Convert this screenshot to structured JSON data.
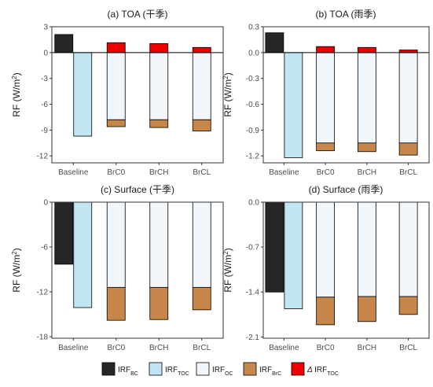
{
  "legend": [
    {
      "id": "bc",
      "base": "IRF",
      "sub": "BC",
      "prefix": "",
      "color": "#262626"
    },
    {
      "id": "toc",
      "base": "IRF",
      "sub": "TOC",
      "prefix": "",
      "color": "#bfe6f2"
    },
    {
      "id": "oc",
      "base": "IRF",
      "sub": "OC",
      "prefix": "",
      "color": "#f1f6fb"
    },
    {
      "id": "brc",
      "base": "IRF",
      "sub": "BrC",
      "prefix": "",
      "color": "#c8874a"
    },
    {
      "id": "dtoc",
      "base": "IRF",
      "sub": "TOC",
      "prefix": "Δ ",
      "color": "#ee0000"
    }
  ],
  "chart_data": [
    {
      "type": "bar",
      "title": "(a) TOA (干季)",
      "ylabel_main": "RF (W/m",
      "ylabel_sup": "2",
      "ylabel_end": ")",
      "categories": [
        "Baseline",
        "BrC0",
        "BrCH",
        "BrCL"
      ],
      "ylim": [
        -12.8,
        3
      ],
      "yticks": [
        3,
        0,
        -3,
        -6,
        -9,
        -12
      ],
      "ytick_labels": [
        "3",
        "0",
        "-3",
        "-6",
        "-9",
        "-12"
      ],
      "zero_line": true,
      "baseline_bars": [
        {
          "series": "bc",
          "from": 0,
          "to": 2.1
        },
        {
          "series": "toc",
          "from": 0,
          "to": -9.7
        }
      ],
      "stacks": [
        {
          "category": "BrC0",
          "segments": [
            {
              "series": "oc",
              "from": 0,
              "to": -7.8
            },
            {
              "series": "brc",
              "from": -7.8,
              "to": -8.6
            },
            {
              "series": "dtoc",
              "from": 0,
              "to": 1.15
            }
          ]
        },
        {
          "category": "BrCH",
          "segments": [
            {
              "series": "oc",
              "from": 0,
              "to": -7.8
            },
            {
              "series": "brc",
              "from": -7.8,
              "to": -8.7
            },
            {
              "series": "dtoc",
              "from": 0,
              "to": 1.05
            }
          ]
        },
        {
          "category": "BrCL",
          "segments": [
            {
              "series": "oc",
              "from": 0,
              "to": -7.8
            },
            {
              "series": "brc",
              "from": -7.8,
              "to": -9.1
            },
            {
              "series": "dtoc",
              "from": 0,
              "to": 0.6
            }
          ]
        }
      ]
    },
    {
      "type": "bar",
      "title": "(b) TOA (雨季)",
      "ylabel_main": "RF (W/m",
      "ylabel_sup": "2",
      "ylabel_end": ")",
      "categories": [
        "Baseline",
        "BrC0",
        "BrCH",
        "BrCL"
      ],
      "ylim": [
        -1.28,
        0.3
      ],
      "yticks": [
        0.3,
        0,
        -0.3,
        -0.6,
        -0.9,
        -1.2
      ],
      "ytick_labels": [
        "0.3",
        "0.0",
        "-0.3",
        "-0.6",
        "-0.9",
        "-1.2"
      ],
      "zero_line": true,
      "baseline_bars": [
        {
          "series": "bc",
          "from": 0,
          "to": 0.23
        },
        {
          "series": "toc",
          "from": 0,
          "to": -1.22
        }
      ],
      "stacks": [
        {
          "category": "BrC0",
          "segments": [
            {
              "series": "oc",
              "from": 0,
              "to": -1.05
            },
            {
              "series": "brc",
              "from": -1.05,
              "to": -1.14
            },
            {
              "series": "dtoc",
              "from": 0,
              "to": 0.07
            }
          ]
        },
        {
          "category": "BrCH",
          "segments": [
            {
              "series": "oc",
              "from": 0,
              "to": -1.05
            },
            {
              "series": "brc",
              "from": -1.05,
              "to": -1.15
            },
            {
              "series": "dtoc",
              "from": 0,
              "to": 0.06
            }
          ]
        },
        {
          "category": "BrCL",
          "segments": [
            {
              "series": "oc",
              "from": 0,
              "to": -1.05
            },
            {
              "series": "brc",
              "from": -1.05,
              "to": -1.19
            },
            {
              "series": "dtoc",
              "from": 0,
              "to": 0.03
            }
          ]
        }
      ]
    },
    {
      "type": "bar",
      "title": "(c) Surface (干季)",
      "ylabel_main": "RF (W/m",
      "ylabel_sup": "2",
      "ylabel_end": ")",
      "categories": [
        "Baseline",
        "BrC0",
        "BrCH",
        "BrCL"
      ],
      "ylim": [
        -18.2,
        0
      ],
      "yticks": [
        0,
        -6,
        -12,
        -18
      ],
      "ytick_labels": [
        "0",
        "-6",
        "-12",
        "-18"
      ],
      "zero_line": false,
      "baseline_bars": [
        {
          "series": "bc",
          "from": 0,
          "to": -8.3
        },
        {
          "series": "toc",
          "from": 0,
          "to": -14.1
        }
      ],
      "stacks": [
        {
          "category": "BrC0",
          "segments": [
            {
              "series": "oc",
              "from": 0,
              "to": -11.4
            },
            {
              "series": "brc",
              "from": -11.4,
              "to": -15.8
            }
          ]
        },
        {
          "category": "BrCH",
          "segments": [
            {
              "series": "oc",
              "from": 0,
              "to": -11.4
            },
            {
              "series": "brc",
              "from": -11.4,
              "to": -15.7
            }
          ]
        },
        {
          "category": "BrCL",
          "segments": [
            {
              "series": "oc",
              "from": 0,
              "to": -11.4
            },
            {
              "series": "brc",
              "from": -11.4,
              "to": -14.4
            }
          ]
        }
      ]
    },
    {
      "type": "bar",
      "title": "(d) Surface (雨季)",
      "ylabel_main": "RF (W/m",
      "ylabel_sup": "2",
      "ylabel_end": ")",
      "categories": [
        "Baseline",
        "BrC0",
        "BrCH",
        "BrCL"
      ],
      "ylim": [
        -2.12,
        0
      ],
      "yticks": [
        0,
        -0.7,
        -1.4,
        -2.1
      ],
      "ytick_labels": [
        "0.0",
        "-0.7",
        "-1.4",
        "-2.1"
      ],
      "zero_line": false,
      "baseline_bars": [
        {
          "series": "bc",
          "from": 0,
          "to": -1.4
        },
        {
          "series": "toc",
          "from": 0,
          "to": -1.66
        }
      ],
      "stacks": [
        {
          "category": "BrC0",
          "segments": [
            {
              "series": "oc",
              "from": 0,
              "to": -1.48
            },
            {
              "series": "brc",
              "from": -1.48,
              "to": -1.91
            }
          ]
        },
        {
          "category": "BrCH",
          "segments": [
            {
              "series": "oc",
              "from": 0,
              "to": -1.47
            },
            {
              "series": "brc",
              "from": -1.47,
              "to": -1.86
            }
          ]
        },
        {
          "category": "BrCL",
          "segments": [
            {
              "series": "oc",
              "from": 0,
              "to": -1.47
            },
            {
              "series": "brc",
              "from": -1.47,
              "to": -1.75
            }
          ]
        }
      ]
    }
  ]
}
